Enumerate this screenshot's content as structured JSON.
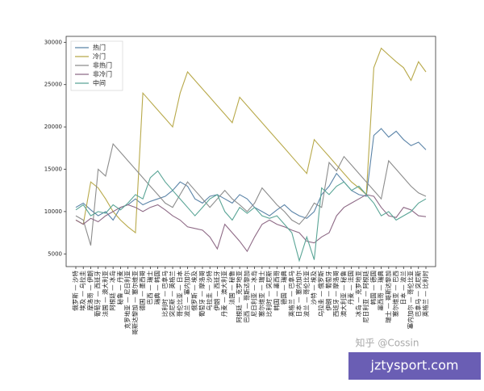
{
  "chart_data": {
    "type": "line",
    "categories": [
      "俄罗斯 — 沙特",
      "埃及 — 乌拉圭",
      "摩洛哥 — 伊朗",
      "葡萄牙 — 西班牙",
      "法国 — 澳大利亚",
      "阿根廷 — 冰岛",
      "秘鲁 — 丹麦",
      "克罗地亚 — 尼日利亚",
      "哥斯达黎加 — 塞尔维亚",
      "德国 — 墨西哥",
      "巴西 — 瑞士",
      "瑞典 — 韩国",
      "比利时 — 巴拿马",
      "突尼斯 — 英格兰",
      "哥伦比亚 — 日本",
      "波兰 — 塞内加尔",
      "俄罗斯 — 埃及",
      "葡萄牙 — 摩洛哥",
      "乌拉圭 — 沙特",
      "伊朗 — 西班牙",
      "丹麦 — 澳大利亚",
      "法国 — 秘鲁",
      "阿根廷 — 克罗地亚",
      "巴西 — 哥斯达黎加",
      "尼日利亚 — 冰岛",
      "塞尔维亚 — 瑞士",
      "比利时 — 突尼斯",
      "韩国 — 墨西哥",
      "德国 — 瑞典",
      "英格兰 — 巴拿马",
      "日本 — 塞内加尔",
      "波兰 — 哥伦比亚",
      "沙特 — 埃及",
      "乌拉圭 — 俄罗斯",
      "伊朗 — 葡萄牙",
      "西班牙 — 摩洛哥",
      "澳大利亚 — 秘鲁",
      "丹麦 — 法国",
      "冰岛 — 克罗地亚",
      "尼日利亚 — 阿根廷",
      "韩国 — 德国",
      "墨西哥 — 瑞典",
      "瑞士 — 哥斯达黎加",
      "塞尔维亚 — 巴西",
      "日本 — 波兰",
      "塞内加尔 — 哥伦比亚",
      "巴拿马 — 突尼斯",
      "英格兰 — 比利时"
    ],
    "series": [
      {
        "name": "热门",
        "color": "#5b84a8",
        "values": [
          10500,
          11000,
          10200,
          9500,
          10000,
          9000,
          10500,
          10800,
          11500,
          10800,
          11200,
          11500,
          11800,
          12500,
          13500,
          13000,
          11500,
          11000,
          11800,
          12000,
          11500,
          11000,
          12000,
          11500,
          10500,
          10000,
          9500,
          10200,
          10800,
          10000,
          9500,
          9200,
          10000,
          12000,
          13000,
          14500,
          13500,
          12500,
          12000,
          11800,
          19000,
          19800,
          18800,
          19500,
          18500,
          17800,
          18200,
          17300
        ]
      },
      {
        "name": "冷门",
        "color": "#b8a94a",
        "values": [
          9000,
          8500,
          13500,
          12800,
          11500,
          10000,
          9000,
          8200,
          7500,
          24000,
          23000,
          22000,
          21000,
          20000,
          24000,
          26500,
          25500,
          24500,
          23500,
          22500,
          21500,
          20500,
          23500,
          22500,
          21500,
          20500,
          19500,
          18500,
          17500,
          16500,
          15500,
          14500,
          18500,
          17500,
          16500,
          15500,
          14500,
          13500,
          12800,
          12000,
          27000,
          29300,
          28500,
          27700,
          27000,
          25500,
          27700,
          26500
        ]
      },
      {
        "name": "非热门",
        "color": "#8c8c8c",
        "values": [
          9500,
          9000,
          6000,
          15000,
          14200,
          18000,
          17000,
          16000,
          15000,
          14000,
          13000,
          12000,
          11000,
          10500,
          12000,
          13500,
          12500,
          11500,
          10500,
          11500,
          12500,
          11500,
          10800,
          10000,
          11000,
          12800,
          11800,
          10800,
          10000,
          9000,
          8500,
          9500,
          11000,
          10500,
          15800,
          14800,
          16500,
          15500,
          14500,
          13500,
          12500,
          11500,
          16000,
          15000,
          14000,
          13000,
          12200,
          11800
        ]
      },
      {
        "name": "非冷门",
        "color": "#8e6a86",
        "values": [
          9000,
          8500,
          9200,
          8800,
          9500,
          10000,
          10500,
          10800,
          10500,
          10000,
          10500,
          10800,
          10200,
          9500,
          9000,
          8200,
          8000,
          7800,
          7000,
          5600,
          8500,
          7500,
          6500,
          5300,
          7000,
          8500,
          9000,
          8500,
          8200,
          7800,
          7500,
          6500,
          6300,
          7000,
          7500,
          9500,
          10500,
          11000,
          11500,
          12000,
          11800,
          10500,
          9500,
          9300,
          10500,
          10200,
          9500,
          9400
        ]
      },
      {
        "name": "中间",
        "color": "#5aa596",
        "values": [
          10200,
          10800,
          9500,
          10000,
          9800,
          10800,
          10200,
          11000,
          12000,
          11500,
          14000,
          14800,
          13500,
          12500,
          11500,
          10500,
          9500,
          10500,
          11500,
          12000,
          10000,
          9000,
          10500,
          9800,
          10500,
          9500,
          9200,
          9500,
          8500,
          7500,
          4200,
          7000,
          4300,
          12800,
          12000,
          13000,
          13500,
          12500,
          13000,
          12000,
          11000,
          9500,
          10000,
          9000,
          9500,
          10000,
          11000,
          11500
        ]
      }
    ],
    "ylim": [
      3500,
      30700
    ],
    "yticks": [
      5000,
      10000,
      15000,
      20000,
      25000,
      30000
    ],
    "legend": "upper left",
    "watermark": "知乎 @Cossin",
    "badge": "jztysport.com"
  }
}
